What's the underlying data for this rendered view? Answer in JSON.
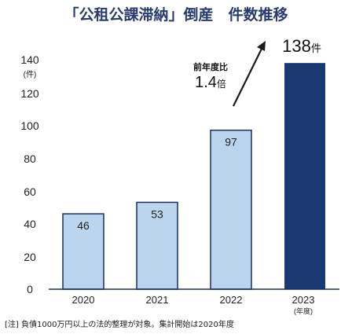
{
  "chart_data": {
    "type": "bar",
    "title": "「公租公課滞納」倒産　件数推移",
    "y_unit_label": "(件)",
    "ylim": [
      0,
      140
    ],
    "yticks": [
      0,
      20,
      40,
      60,
      80,
      100,
      120,
      140
    ],
    "categories": [
      "2020",
      "2021",
      "2022",
      "2023"
    ],
    "values": [
      46,
      53,
      97,
      138
    ],
    "value_labels": [
      "46",
      "53",
      "97",
      "138"
    ],
    "value_unit": "件",
    "x_unit_label": "(年度)",
    "grid": false,
    "legend": "none",
    "annotation": {
      "line1": "前年度比",
      "ratio": "1.4",
      "ratio_unit": "倍"
    },
    "colors": {
      "bar": "#bcd5ef",
      "bar_border": "#1b2f5c",
      "highlight_bar": "#1a3872",
      "title": "#2a3a6e"
    }
  },
  "footnote": "[注] 負債1000万円以上の法的整理が対象。集計開始は2020年度"
}
